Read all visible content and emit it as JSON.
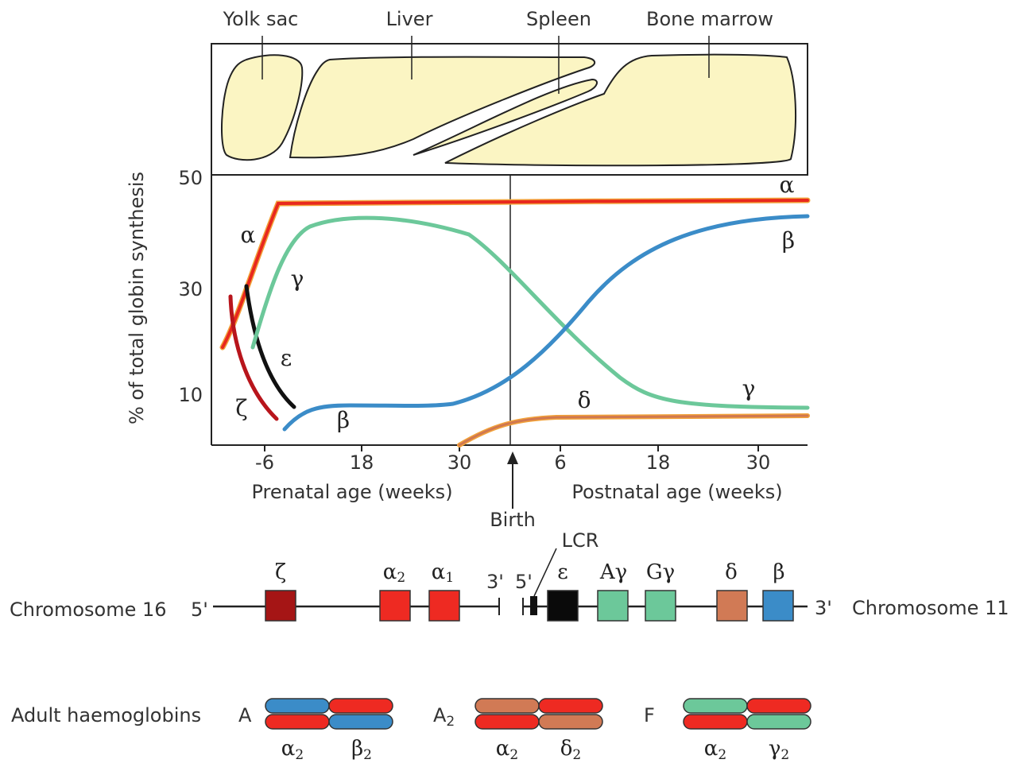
{
  "organs": {
    "yolk_sac": "Yolk sac",
    "liver": "Liver",
    "spleen": "Spleen",
    "bone_marrow": "Bone marrow"
  },
  "axes": {
    "ylabel": "% of total globin synthesis",
    "yticks": [
      "50",
      "30",
      "10"
    ],
    "prenatal_ticks": [
      "-6",
      "18",
      "30"
    ],
    "postnatal_ticks": [
      "6",
      "18",
      "30"
    ],
    "prenatal_label": "Prenatal age (weeks)",
    "postnatal_label": "Postnatal age (weeks)",
    "birth_label": "Birth"
  },
  "curve_labels": {
    "alpha_top": "α",
    "alpha_left": "α",
    "beta_right": "β",
    "beta_low": "β",
    "gamma_left": "γ",
    "gamma_right": "γ",
    "epsilon": "ε",
    "zeta": "ζ",
    "delta": "δ"
  },
  "colors": {
    "alpha": "#e8281e",
    "beta": "#3b8cc8",
    "gamma": "#6cc89a",
    "epsilon": "#111111",
    "zeta": "#b8151c",
    "delta": "#d88050"
  },
  "genes": {
    "chr16_label": "Chromosome 16",
    "chr11_label": "Chromosome 11",
    "five_prime_16": "5'",
    "three_prime_16": "3'",
    "five_prime_11": "5'",
    "three_prime_11": "3'",
    "lcr": "LCR",
    "zeta": "ζ",
    "alpha2": "α",
    "alpha2_sub": "2",
    "alpha1": "α",
    "alpha1_sub": "1",
    "epsilon": "ε",
    "a_gamma": "Aγ",
    "g_gamma": "Gγ",
    "delta": "δ",
    "beta": "β"
  },
  "haemoglobins": {
    "label": "Adult haemoglobins",
    "a": "A",
    "a2": "A",
    "a2_sub": "2",
    "f": "F",
    "a_chain1": "α",
    "a_chain2": "β",
    "a2_chain1": "α",
    "a2_chain2": "δ",
    "f_chain1": "α",
    "f_chain2": "γ",
    "sub2": "2"
  }
}
